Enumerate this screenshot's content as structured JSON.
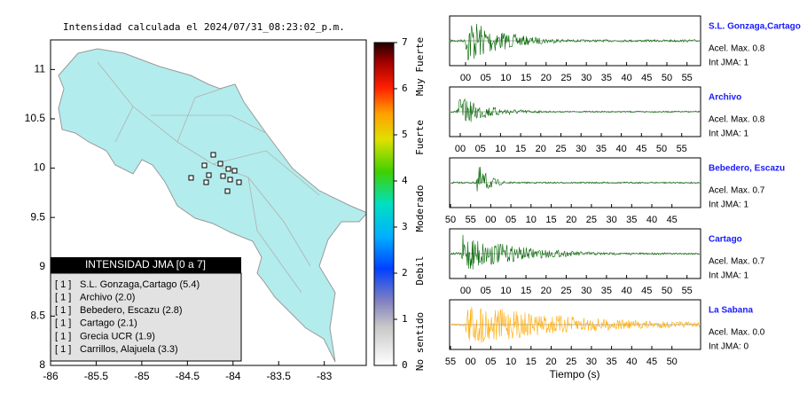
{
  "chart_data": [
    {
      "type": "map",
      "title": "Intensidad calculada el 2024/07/31_08:23:02_p.m.",
      "xlim": [
        -86,
        -82.54
      ],
      "ylim": [
        8,
        11.3
      ],
      "xticks": [
        -86,
        -85.5,
        -85,
        -84.5,
        -84,
        -83.5,
        -83
      ],
      "yticks": [
        8,
        8.5,
        9,
        9.5,
        10,
        10.5,
        11
      ],
      "colorbar": {
        "ylim": [
          0,
          7
        ],
        "yticks": [
          0,
          1,
          2,
          3,
          4,
          5,
          6,
          7
        ],
        "labels": [
          "No sentido",
          "Debil",
          "Moderado",
          "Fuerte",
          "Muy Fuerte"
        ]
      },
      "legend": {
        "title": "INTENSIDAD JMA [0 a 7]",
        "entries": [
          {
            "tag": "[ 1 ]",
            "label": "S.L. Gonzaga,Cartago (5.4)"
          },
          {
            "tag": "[ 1 ]",
            "label": "Archivo (2.0)"
          },
          {
            "tag": "[ 1 ]",
            "label": "Bebedero, Escazu (2.8)"
          },
          {
            "tag": "[ 1 ]",
            "label": "Cartago (2.1)"
          },
          {
            "tag": "[ 1 ]",
            "label": "Grecia UCR (1.9)"
          },
          {
            "tag": "[ 1 ]",
            "label": "Carrillos, Alajuela (3.3)"
          }
        ]
      }
    },
    {
      "type": "waveforms",
      "xlabel": "Tiempo (s)",
      "panels": [
        {
          "name": "S.L. Gonzaga,Cartago",
          "acel": "Acel. Max. 0.8",
          "int": "Int JMA: 1",
          "color": "#006400",
          "time_labels": [
            "00",
            "05",
            "10",
            "15",
            "20",
            "25",
            "30",
            "35",
            "40",
            "45",
            "50",
            "55"
          ]
        },
        {
          "name": "Archivo",
          "acel": "Acel. Max. 0.8",
          "int": "Int JMA: 1",
          "color": "#006400",
          "time_labels": [
            "00",
            "05",
            "10",
            "15",
            "20",
            "25",
            "30",
            "35",
            "40",
            "45",
            "50",
            "55"
          ]
        },
        {
          "name": "Bebedero, Escazu",
          "acel": "Acel. Max. 0.7",
          "int": "Int JMA: 1",
          "color": "#006400",
          "time_labels": [
            "50",
            "55",
            "00",
            "05",
            "10",
            "15",
            "20",
            "25",
            "30",
            "35",
            "40",
            "45"
          ]
        },
        {
          "name": "Cartago",
          "acel": "Acel. Max. 0.7",
          "int": "Int JMA: 1",
          "color": "#006400",
          "time_labels": [
            "00",
            "05",
            "10",
            "15",
            "20",
            "25",
            "30",
            "35",
            "40",
            "45",
            "50",
            "55"
          ]
        },
        {
          "name": "La Sabana",
          "acel": "Acel. Max. 0.0",
          "int": "Int JMA: 0",
          "color": "#ffaa00",
          "time_labels": [
            "55",
            "00",
            "05",
            "10",
            "15",
            "20",
            "25",
            "30",
            "35",
            "40",
            "45",
            "50"
          ]
        }
      ]
    }
  ]
}
